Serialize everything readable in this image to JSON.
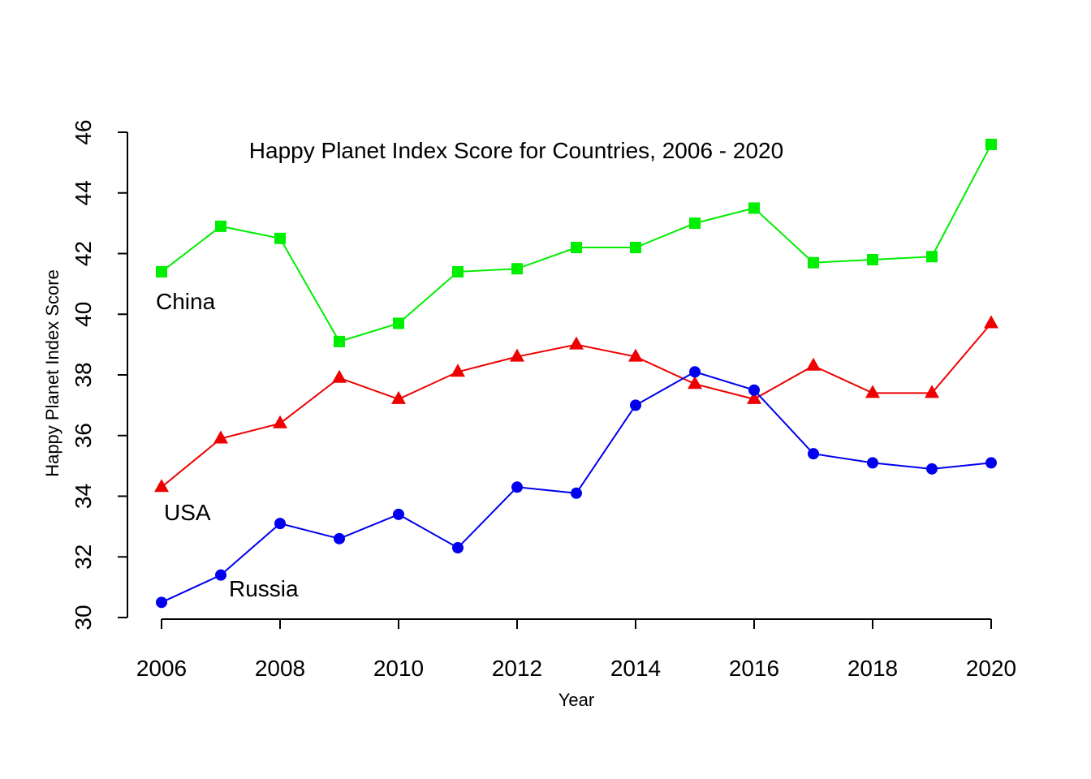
{
  "chart_data": {
    "type": "line",
    "title": "Happy Planet Index Score for Countries, 2006 - 2020",
    "xlabel": "Year",
    "ylabel": "Happy Planet Index Score",
    "x": [
      2006,
      2007,
      2008,
      2009,
      2010,
      2011,
      2012,
      2013,
      2014,
      2015,
      2016,
      2017,
      2018,
      2019,
      2020
    ],
    "xlim": [
      2006,
      2020
    ],
    "ylim": [
      30,
      46
    ],
    "x_ticks": [
      2006,
      2008,
      2010,
      2012,
      2014,
      2016,
      2018,
      2020
    ],
    "y_ticks": [
      30,
      32,
      34,
      36,
      38,
      40,
      42,
      44,
      46
    ],
    "grid": false,
    "legend": "none",
    "series": [
      {
        "name": "China",
        "color": "#00ee00",
        "marker": "square",
        "values": [
          41.4,
          42.9,
          42.5,
          39.1,
          39.7,
          41.4,
          41.5,
          42.2,
          42.2,
          43.0,
          43.5,
          41.7,
          41.8,
          41.9,
          45.6
        ]
      },
      {
        "name": "USA",
        "color": "#ee0000",
        "marker": "triangle",
        "values": [
          34.3,
          35.9,
          36.4,
          37.9,
          37.2,
          38.1,
          38.6,
          39.0,
          38.6,
          37.7,
          37.2,
          38.3,
          37.4,
          37.4,
          39.7
        ]
      },
      {
        "name": "Russia",
        "color": "#0000ee",
        "marker": "circle",
        "values": [
          30.5,
          31.4,
          33.1,
          32.6,
          33.4,
          32.3,
          34.3,
          34.1,
          37.0,
          38.1,
          37.5,
          35.4,
          35.1,
          34.9,
          35.1
        ]
      }
    ]
  }
}
